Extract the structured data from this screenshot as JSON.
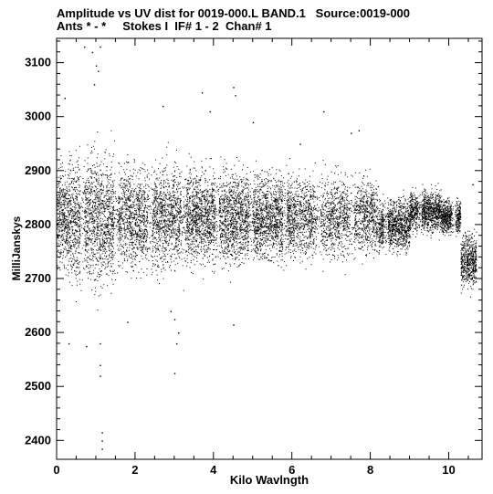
{
  "header": {
    "title": "Amplitude vs UV dist for 0019-000.L BAND.1   Source:0019-000",
    "subtitle": "Ants * - *     Stokes I  IF# 1 - 2  Chan# 1"
  },
  "chart_data": {
    "type": "scatter",
    "title": "Amplitude vs UV dist for 0019-000.L BAND.1   Source:0019-000",
    "subtitle": "Ants * - *     Stokes I  IF# 1 - 2  Chan# 1",
    "xlabel": "Kilo Wavlngth",
    "ylabel": "MilliJanskys",
    "xlim": [
      0,
      10.85
    ],
    "ylim": [
      2365,
      3145
    ],
    "x_ticks": [
      0,
      2,
      4,
      6,
      8,
      10
    ],
    "y_ticks": [
      2400,
      2500,
      2600,
      2700,
      2800,
      2900,
      3000,
      3100
    ],
    "grid": false,
    "marker_color": "#000000",
    "density_profile": [
      {
        "x": [
          0.0,
          0.3
        ],
        "y_center": 2815,
        "spread": 85
      },
      {
        "x": [
          0.3,
          1.5
        ],
        "y_center": 2810,
        "spread": 110
      },
      {
        "x": [
          1.5,
          3.3
        ],
        "y_center": 2815,
        "spread": 90
      },
      {
        "x": [
          3.3,
          4.5
        ],
        "y_center": 2815,
        "spread": 80
      },
      {
        "x": [
          4.5,
          6.0
        ],
        "y_center": 2815,
        "spread": 75
      },
      {
        "x": [
          6.0,
          8.2
        ],
        "y_center": 2815,
        "spread": 70
      },
      {
        "x": [
          8.2,
          9.0
        ],
        "y_center": 2800,
        "spread": 45
      },
      {
        "x": [
          9.0,
          9.8
        ],
        "y_center": 2825,
        "spread": 35
      },
      {
        "x": [
          9.8,
          10.3
        ],
        "y_center": 2815,
        "spread": 30
      },
      {
        "x": [
          10.3,
          10.7
        ],
        "y_center": 2735,
        "spread": 45
      }
    ],
    "outliers": [
      {
        "x": 0.7,
        "y": 3130
      },
      {
        "x": 1.1,
        "y": 3130
      },
      {
        "x": 0.9,
        "y": 3120
      },
      {
        "x": 1.0,
        "y": 3095
      },
      {
        "x": 1.05,
        "y": 3085
      },
      {
        "x": 0.2,
        "y": 3035
      },
      {
        "x": 0.95,
        "y": 3060
      },
      {
        "x": 1.1,
        "y": 2520
      },
      {
        "x": 1.1,
        "y": 2540
      },
      {
        "x": 1.1,
        "y": 2580
      },
      {
        "x": 1.15,
        "y": 2415
      },
      {
        "x": 1.15,
        "y": 2400
      },
      {
        "x": 1.15,
        "y": 2385
      },
      {
        "x": 3.0,
        "y": 2525
      },
      {
        "x": 3.05,
        "y": 2580
      },
      {
        "x": 3.1,
        "y": 2600
      },
      {
        "x": 3.0,
        "y": 2625
      },
      {
        "x": 2.9,
        "y": 2640
      },
      {
        "x": 3.7,
        "y": 3045
      },
      {
        "x": 4.5,
        "y": 3055
      },
      {
        "x": 4.55,
        "y": 3040
      },
      {
        "x": 4.5,
        "y": 2615
      },
      {
        "x": 6.2,
        "y": 2950
      },
      {
        "x": 6.8,
        "y": 3010
      },
      {
        "x": 7.7,
        "y": 2975
      },
      {
        "x": 7.5,
        "y": 2970
      },
      {
        "x": 0.3,
        "y": 2580
      },
      {
        "x": 0.75,
        "y": 2575
      },
      {
        "x": 1.8,
        "y": 2620
      },
      {
        "x": 3.9,
        "y": 3010
      },
      {
        "x": 2.7,
        "y": 3020
      },
      {
        "x": 5.0,
        "y": 2990
      },
      {
        "x": 10.6,
        "y": 2875
      }
    ]
  }
}
